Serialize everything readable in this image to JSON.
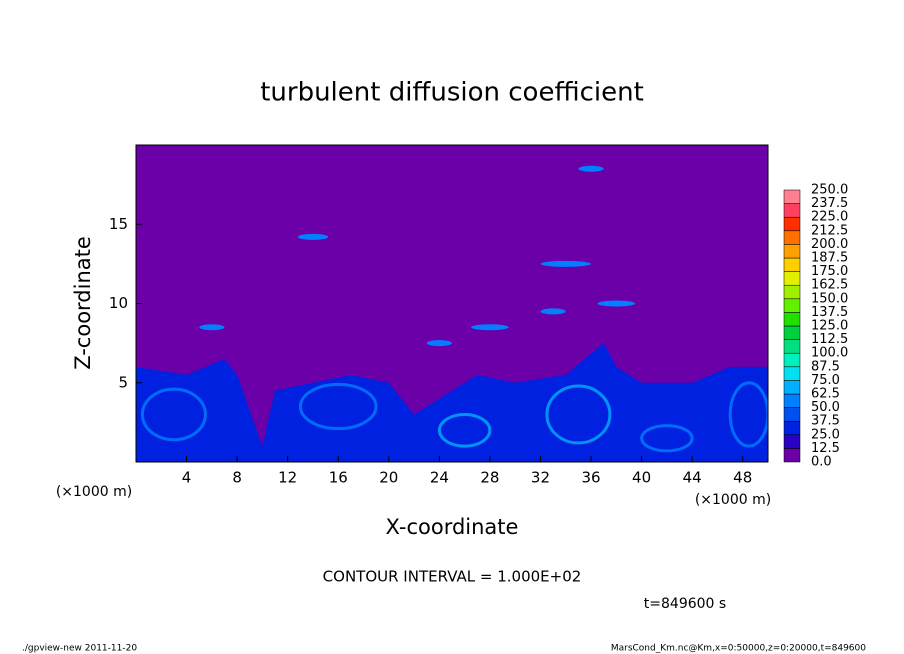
{
  "chart_data": {
    "type": "contour",
    "title": "turbulent diffusion coefficient",
    "xlabel": "X-coordinate",
    "ylabel": "Z-coordinate",
    "x_unit": "(×1000 m)",
    "xlim": [
      0,
      50
    ],
    "xticks": [
      4,
      8,
      12,
      16,
      20,
      24,
      28,
      32,
      36,
      40,
      44,
      48
    ],
    "ylim": [
      0,
      20
    ],
    "yticks": [
      5,
      10,
      15
    ],
    "colorbar": {
      "levels": [
        {
          "value": 0,
          "label": "0.0"
        },
        {
          "value": 12.5,
          "label": "12.5"
        },
        {
          "value": 25,
          "label": "25.0"
        },
        {
          "value": 37.5,
          "label": "37.5"
        },
        {
          "value": 50,
          "label": "50.0"
        },
        {
          "value": 62.5,
          "label": "62.5"
        },
        {
          "value": 75,
          "label": "75.0"
        },
        {
          "value": 87.5,
          "label": "87.5"
        },
        {
          "value": 100,
          "label": "100.0"
        },
        {
          "value": 112.5,
          "label": "112.5"
        },
        {
          "value": 125,
          "label": "125.0"
        },
        {
          "value": 137.5,
          "label": "137.5"
        },
        {
          "value": 150,
          "label": "150.0"
        },
        {
          "value": 162.5,
          "label": "162.5"
        },
        {
          "value": 175,
          "label": "175.0"
        },
        {
          "value": 187.5,
          "label": "187.5"
        },
        {
          "value": 200,
          "label": "200.0"
        },
        {
          "value": 212.5,
          "label": "212.5"
        },
        {
          "value": 225,
          "label": "225.0"
        },
        {
          "value": 237.5,
          "label": "237.5"
        },
        {
          "value": 250,
          "label": "250.0"
        }
      ],
      "colors": [
        "#6c00a8",
        "#2a00c4",
        "#0022e0",
        "#0050f0",
        "#0080ff",
        "#00b0ff",
        "#00e0f0",
        "#00f0c0",
        "#00e080",
        "#00d040",
        "#20e000",
        "#60f000",
        "#a0f000",
        "#e0f000",
        "#ffd000",
        "#ffa000",
        "#ff7000",
        "#ff3000",
        "#ff4060",
        "#ff8090"
      ]
    },
    "contour_interval": "CONTOUR INTERVAL = 1.000E+02",
    "time_label": "t=849600 s",
    "footer_left": "./gpview-new   2011-11-20",
    "footer_right": "MarsCond_Km.nc@Km,x=0:50000,z=0:20000,t=849600"
  }
}
